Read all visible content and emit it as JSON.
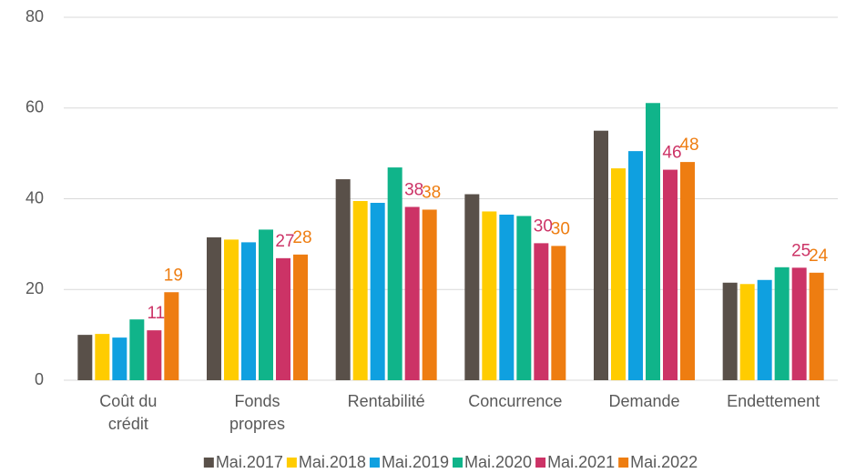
{
  "chart_data": {
    "type": "bar",
    "categories": [
      "Coût du crédit",
      "Fonds propres",
      "Rentabilité",
      "Concurrence",
      "Demande",
      "Endettement"
    ],
    "series": [
      {
        "name": "Mai.2017",
        "color": "#595049",
        "values": [
          10,
          31.5,
          44.3,
          41,
          55,
          21.5
        ]
      },
      {
        "name": "Mai.2018",
        "color": "#ffcc00",
        "values": [
          10.2,
          31,
          39.5,
          37.2,
          46.7,
          21.2
        ]
      },
      {
        "name": "Mai.2019",
        "color": "#0fa0e0",
        "values": [
          9.4,
          30.4,
          39.1,
          36.5,
          50.5,
          22.1
        ]
      },
      {
        "name": "Mai.2020",
        "color": "#10b48a",
        "values": [
          13.4,
          33.2,
          46.9,
          36.2,
          61.1,
          24.9
        ]
      },
      {
        "name": "Mai.2021",
        "color": "#cc3366",
        "values": [
          11,
          26.9,
          38.2,
          30.2,
          46.4,
          24.8
        ],
        "value_labels": [
          "11",
          "27",
          "38",
          "30",
          "46",
          "25"
        ]
      },
      {
        "name": "Mai.2022",
        "color": "#ee7d11",
        "values": [
          19.4,
          27.7,
          37.6,
          29.6,
          48.1,
          23.7
        ],
        "value_labels": [
          "19",
          "28",
          "38",
          "30",
          "48",
          "24"
        ]
      }
    ],
    "ylim": [
      0,
      80
    ],
    "yticks": [
      0,
      20,
      40,
      60,
      80
    ],
    "grid": true,
    "legend": "bottom"
  }
}
